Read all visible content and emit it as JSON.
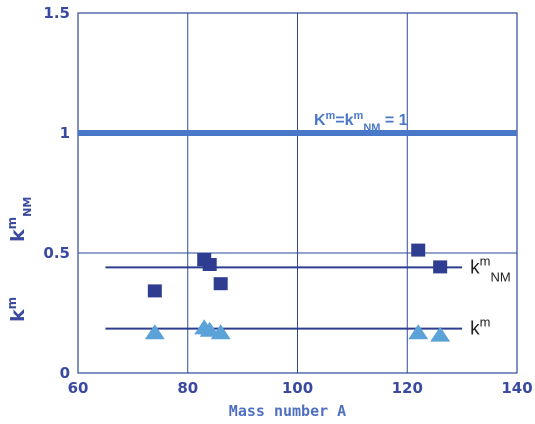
{
  "chart_data": {
    "type": "scatter",
    "xlabel": "Mass number A",
    "ylabel": "km NM",
    "xlim": [
      60,
      140
    ],
    "ylim": [
      0,
      1.5
    ],
    "x_ticks": [
      "60",
      "80",
      "100",
      "120",
      "140"
    ],
    "y_ticks": [
      "0",
      "0.5",
      "1",
      "1.5"
    ],
    "x_tick_values": [
      60,
      80,
      100,
      120,
      140
    ],
    "y_tick_values": [
      0,
      0.5,
      1,
      1.5
    ],
    "grid": true,
    "reference_line": {
      "label": "Km=kmNM = 1",
      "y": 1.0,
      "x": [
        60,
        140
      ],
      "color": "#4a78c8"
    },
    "series": [
      {
        "name": "kmNM",
        "marker": "square",
        "color": "#2e3d8f",
        "x": [
          74,
          83,
          84,
          86,
          122,
          126
        ],
        "y": [
          0.34,
          0.47,
          0.45,
          0.37,
          0.51,
          0.44
        ],
        "fit": {
          "y": 0.44,
          "x": [
            65,
            130
          ]
        }
      },
      {
        "name": "km",
        "marker": "triangle",
        "color": "#5ba2d8",
        "x": [
          74,
          83,
          84,
          86,
          122,
          126
        ],
        "y": [
          0.17,
          0.19,
          0.18,
          0.17,
          0.17,
          0.16
        ],
        "fit": {
          "y": 0.185,
          "x": [
            65,
            130
          ]
        }
      }
    ]
  }
}
